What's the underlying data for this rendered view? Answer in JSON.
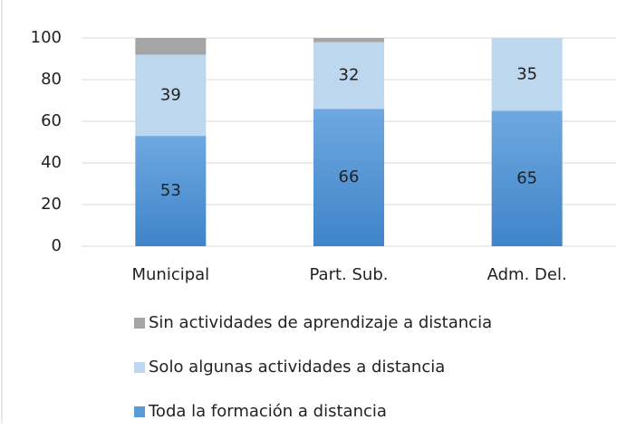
{
  "chart_data": {
    "type": "stacked_bar",
    "categories": [
      "Municipal",
      "Part. Sub.",
      "Adm. Del."
    ],
    "series": [
      {
        "name": "Toda la formación a distancia",
        "color": "#5b9bd5",
        "values": [
          53,
          66,
          65
        ],
        "labels": true
      },
      {
        "name": "Solo algunas actividades a distancia",
        "color": "#bdd7ee",
        "values": [
          39,
          32,
          35
        ],
        "labels": true
      },
      {
        "name": "Sin actividades de aprendizaje a distancia",
        "color": "#a5a5a5",
        "values": [
          8,
          2,
          0
        ],
        "labels": false
      }
    ],
    "ylim": [
      0,
      100
    ],
    "yticks": [
      0,
      20,
      40,
      60,
      80,
      100
    ],
    "grid": true,
    "legend": "bottom"
  }
}
